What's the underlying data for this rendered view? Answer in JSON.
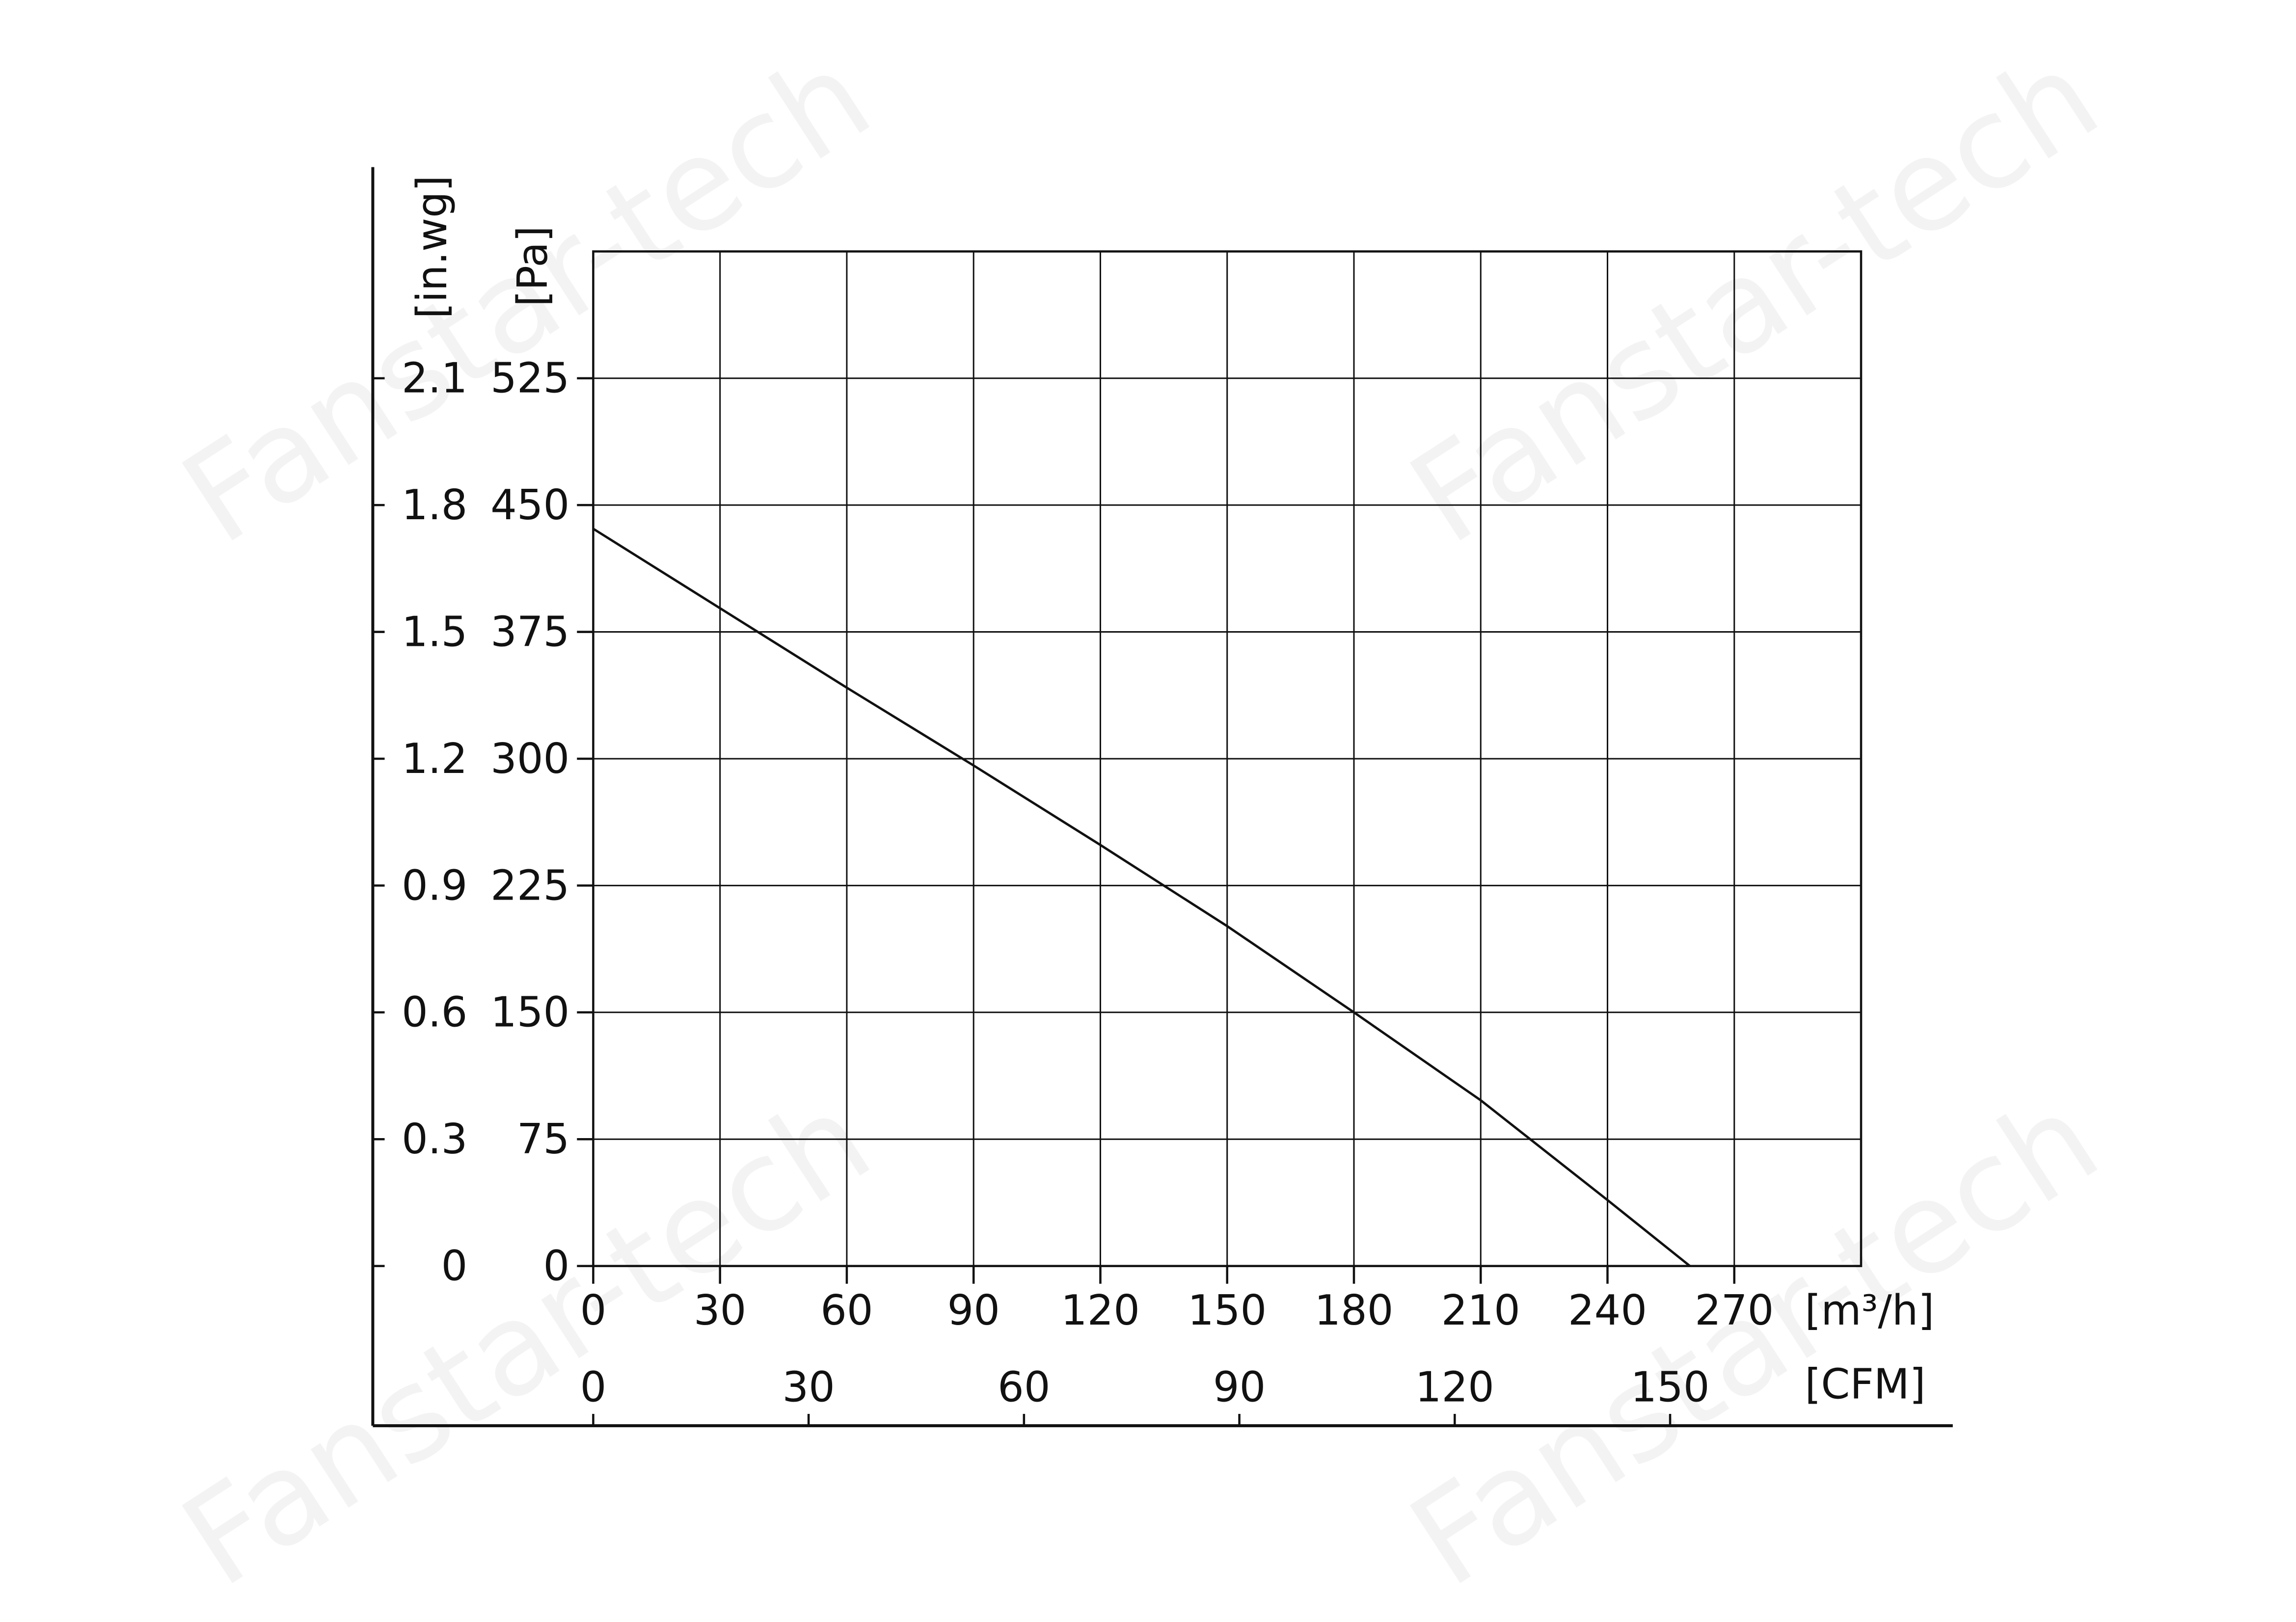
{
  "chart_data": {
    "type": "line",
    "watermark": "Fanstar-tech",
    "y_label": "[Pa]",
    "y2_label": "[in.wg]",
    "x_label": "[m³/h]",
    "x2_label": "[CFM]",
    "x": [
      0,
      30,
      60,
      90,
      120,
      150,
      180,
      210,
      240,
      259.5
    ],
    "series": [
      {
        "color": "#111111",
        "values": [
          436,
          389,
          342,
          296,
          249,
          201,
          150,
          98,
          39,
          0
        ]
      }
    ],
    "xlim": [
      0,
      300
    ],
    "xticks": [
      0,
      30,
      60,
      90,
      120,
      150,
      180,
      210,
      240,
      270
    ],
    "x2lim": [
      0,
      176.6
    ],
    "x2ticks": [
      0,
      30,
      60,
      90,
      120,
      150
    ],
    "ylim": [
      0,
      600
    ],
    "yticks": [
      0,
      75,
      150,
      225,
      300,
      375,
      450,
      525
    ],
    "y2lim": [
      0,
      2.4
    ],
    "y2ticks": [
      0,
      0.3,
      0.6,
      0.9,
      1.2,
      1.5,
      1.8,
      2.1
    ],
    "grid": true
  }
}
